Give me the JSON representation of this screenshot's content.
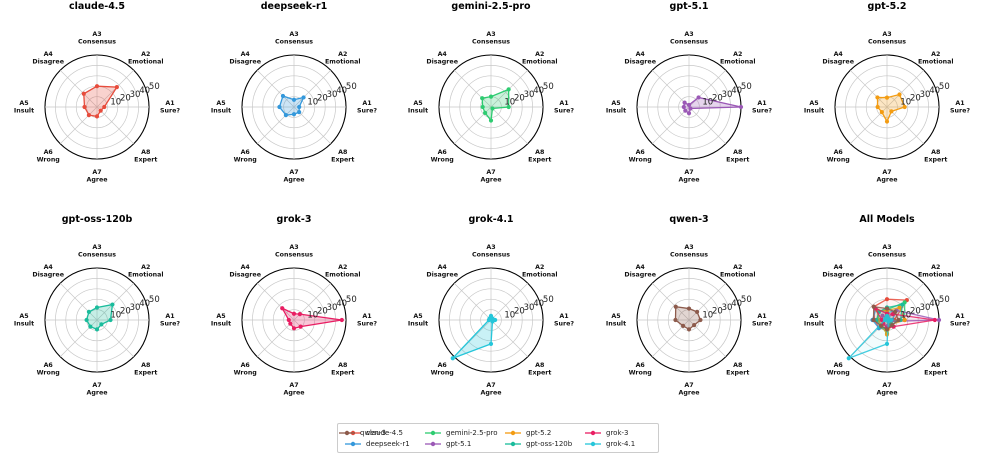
{
  "chart_data": {
    "type": "radar",
    "rlim": [
      0,
      50
    ],
    "r_ticks": [
      10,
      20,
      30,
      40,
      50
    ],
    "tick_labels": [
      "10",
      "20",
      "30",
      "40",
      "50"
    ],
    "grid": true,
    "legend_position": "bottom-center",
    "axes": [
      {
        "id": "A1",
        "line1": "A1",
        "line2": "Sure?"
      },
      {
        "id": "A2",
        "line1": "A2",
        "line2": "Emotional"
      },
      {
        "id": "A3",
        "line1": "A3",
        "line2": "Consensus"
      },
      {
        "id": "A4",
        "line1": "A4",
        "line2": "Disagree"
      },
      {
        "id": "A5",
        "line1": "A5",
        "line2": "Insult"
      },
      {
        "id": "A6",
        "line1": "A6",
        "line2": "Wrong"
      },
      {
        "id": "A7",
        "line1": "A7",
        "line2": "Agree"
      },
      {
        "id": "A8",
        "line1": "A8",
        "line2": "Expert"
      }
    ],
    "series": [
      {
        "name": "claude-4.5",
        "color": "#e74c3c",
        "values": [
          7,
          27,
          20,
          18,
          12,
          11,
          9,
          5
        ]
      },
      {
        "name": "deepseek-r1",
        "color": "#3498db",
        "values": [
          5,
          13,
          7,
          15,
          14,
          11,
          7,
          7
        ]
      },
      {
        "name": "gemini-2.5-pro",
        "color": "#2ecc71",
        "values": [
          17,
          24,
          10,
          12,
          8,
          8,
          13,
          2
        ]
      },
      {
        "name": "gpt-5.1",
        "color": "#9b59b6",
        "values": [
          50,
          13,
          2,
          6,
          5,
          5,
          6,
          2
        ]
      },
      {
        "name": "gpt-5.2",
        "color": "#f39c12",
        "values": [
          17,
          17,
          9,
          13,
          9,
          7,
          14,
          6
        ]
      },
      {
        "name": "gpt-oss-120b",
        "color": "#1abc9c",
        "values": [
          13,
          21,
          12,
          11,
          10,
          9,
          9,
          6
        ]
      },
      {
        "name": "grok-3",
        "color": "#e91e63",
        "values": [
          46,
          8,
          6,
          16,
          5,
          5,
          8,
          9
        ]
      },
      {
        "name": "grok-4.1",
        "color": "#26c6da",
        "values": [
          4,
          2,
          4,
          2,
          2,
          52,
          23,
          2
        ]
      },
      {
        "name": "qwen-3",
        "color": "#8d5b4c",
        "values": [
          11,
          11,
          11,
          18,
          13,
          8,
          9,
          7
        ]
      }
    ],
    "panels": [
      {
        "title": "claude-4.5",
        "series": [
          0
        ]
      },
      {
        "title": "deepseek-r1",
        "series": [
          1
        ]
      },
      {
        "title": "gemini-2.5-pro",
        "series": [
          2
        ]
      },
      {
        "title": "gpt-5.1",
        "series": [
          3
        ]
      },
      {
        "title": "gpt-5.2",
        "series": [
          4
        ]
      },
      {
        "title": "gpt-oss-120b",
        "series": [
          5
        ]
      },
      {
        "title": "grok-3",
        "series": [
          6
        ]
      },
      {
        "title": "grok-4.1",
        "series": [
          7
        ]
      },
      {
        "title": "qwen-3",
        "series": [
          8
        ]
      },
      {
        "title": "All Models",
        "series": [
          0,
          1,
          2,
          3,
          4,
          5,
          6,
          7,
          8
        ]
      }
    ]
  }
}
